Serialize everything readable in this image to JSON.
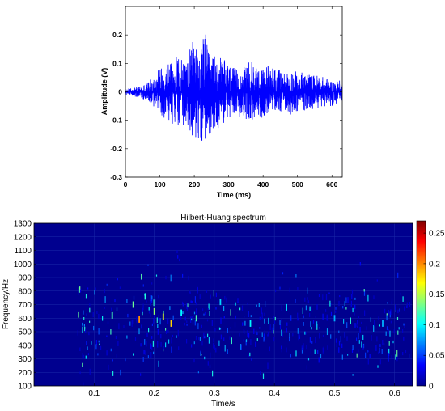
{
  "chart_data": [
    {
      "type": "line",
      "title": "",
      "xlabel": "Time (ms)",
      "ylabel": "Amplitude (V)",
      "xlim": [
        0,
        630
      ],
      "ylim": [
        -0.3,
        0.3
      ],
      "xticks": [
        0,
        100,
        200,
        300,
        400,
        500,
        600
      ],
      "yticks": [
        -0.3,
        -0.2,
        -0.1,
        0,
        0.1,
        0.2
      ],
      "series": [
        {
          "color": "#0000ff",
          "envelope": {
            "x": [
              0,
              20,
              40,
              60,
              80,
              100,
              120,
              140,
              160,
              180,
              200,
              220,
              230,
              240,
              260,
              280,
              300,
              320,
              340,
              360,
              380,
              400,
              420,
              440,
              460,
              480,
              500,
              520,
              540,
              560,
              580,
              600,
              630
            ],
            "upper": [
              0.01,
              0.015,
              0.02,
              0.03,
              0.05,
              0.09,
              0.11,
              0.13,
              0.12,
              0.12,
              0.2,
              0.15,
              0.24,
              0.14,
              0.13,
              0.12,
              0.1,
              0.08,
              0.08,
              0.11,
              0.1,
              0.08,
              0.11,
              0.08,
              0.07,
              0.08,
              0.07,
              0.07,
              0.06,
              0.06,
              0.05,
              0.04,
              0.04
            ],
            "lower": [
              -0.01,
              -0.015,
              -0.02,
              -0.03,
              -0.05,
              -0.08,
              -0.1,
              -0.12,
              -0.12,
              -0.15,
              -0.17,
              -0.18,
              -0.22,
              -0.15,
              -0.14,
              -0.12,
              -0.1,
              -0.09,
              -0.09,
              -0.1,
              -0.1,
              -0.09,
              -0.08,
              -0.07,
              -0.07,
              -0.08,
              -0.07,
              -0.07,
              -0.06,
              -0.06,
              -0.05,
              -0.05,
              -0.04
            ]
          }
        }
      ]
    },
    {
      "type": "heatmap",
      "title": "Hilbert-Huang spectrum",
      "xlabel": "Time/s",
      "ylabel": "Frequency/Hz",
      "xlim": [
        0,
        0.63
      ],
      "ylim": [
        100,
        1300
      ],
      "xticks": [
        0.1,
        0.2,
        0.3,
        0.4,
        0.5,
        0.6
      ],
      "yticks": [
        100,
        200,
        300,
        400,
        500,
        600,
        700,
        800,
        900,
        1000,
        1100,
        1200,
        1300
      ],
      "colorbar": {
        "colormap": "jet",
        "range": [
          0,
          0.27
        ],
        "ticks": [
          0,
          0.05,
          0.1,
          0.15,
          0.2,
          0.25
        ]
      },
      "background_value": 0.0,
      "hotspots": [
        {
          "t": 0.13,
          "f": 620,
          "v": 0.12
        },
        {
          "t": 0.165,
          "f": 700,
          "v": 0.13
        },
        {
          "t": 0.175,
          "f": 590,
          "v": 0.2
        },
        {
          "t": 0.185,
          "f": 760,
          "v": 0.11
        },
        {
          "t": 0.2,
          "f": 650,
          "v": 0.14
        },
        {
          "t": 0.215,
          "f": 610,
          "v": 0.16
        },
        {
          "t": 0.228,
          "f": 560,
          "v": 0.18
        },
        {
          "t": 0.245,
          "f": 640,
          "v": 0.1
        },
        {
          "t": 0.27,
          "f": 600,
          "v": 0.12
        },
        {
          "t": 0.31,
          "f": 720,
          "v": 0.09
        },
        {
          "t": 0.36,
          "f": 560,
          "v": 0.1
        },
        {
          "t": 0.42,
          "f": 680,
          "v": 0.09
        },
        {
          "t": 0.5,
          "f": 600,
          "v": 0.08
        },
        {
          "t": 0.58,
          "f": 560,
          "v": 0.08
        }
      ]
    }
  ]
}
